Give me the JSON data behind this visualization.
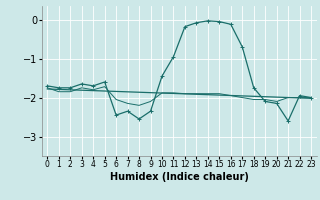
{
  "xlabel": "Humidex (Indice chaleur)",
  "background_color": "#cde8e8",
  "grid_color": "#b0d4d4",
  "line_color": "#1a6e6a",
  "xlim": [
    -0.5,
    23.5
  ],
  "ylim": [
    -3.5,
    0.35
  ],
  "yticks": [
    0,
    -1,
    -2,
    -3
  ],
  "xticks": [
    0,
    1,
    2,
    3,
    4,
    5,
    6,
    7,
    8,
    9,
    10,
    11,
    12,
    13,
    14,
    15,
    16,
    17,
    18,
    19,
    20,
    21,
    22,
    23
  ],
  "curve1_x": [
    0,
    1,
    2,
    3,
    4,
    5,
    6,
    7,
    8,
    9,
    10,
    11,
    12,
    13,
    14,
    15,
    16,
    17,
    18,
    19,
    20,
    21,
    22,
    23
  ],
  "curve1_y": [
    -1.7,
    -1.75,
    -1.75,
    -1.65,
    -1.7,
    -1.6,
    -2.45,
    -2.35,
    -2.55,
    -2.35,
    -1.45,
    -0.95,
    -0.18,
    -0.08,
    -0.03,
    -0.05,
    -0.12,
    -0.7,
    -1.75,
    -2.1,
    -2.15,
    -2.6,
    -1.95,
    -2.0
  ],
  "curve2_x": [
    0,
    1,
    2,
    3,
    4,
    5,
    6,
    7,
    8,
    9,
    10,
    11,
    12,
    13,
    14,
    15,
    16,
    17,
    18,
    19,
    20,
    21,
    22,
    23
  ],
  "curve2_y": [
    -1.75,
    -1.85,
    -1.85,
    -1.75,
    -1.8,
    -1.72,
    -2.05,
    -2.15,
    -2.2,
    -2.1,
    -1.88,
    -1.88,
    -1.9,
    -1.9,
    -1.9,
    -1.9,
    -1.95,
    -2.0,
    -2.05,
    -2.05,
    -2.1,
    -2.0,
    -2.0,
    -2.0
  ],
  "curve3_x": [
    0,
    23
  ],
  "curve3_y": [
    -1.78,
    -2.02
  ],
  "font_size_label": 7,
  "font_size_tick_x": 5.5,
  "font_size_tick_y": 7
}
